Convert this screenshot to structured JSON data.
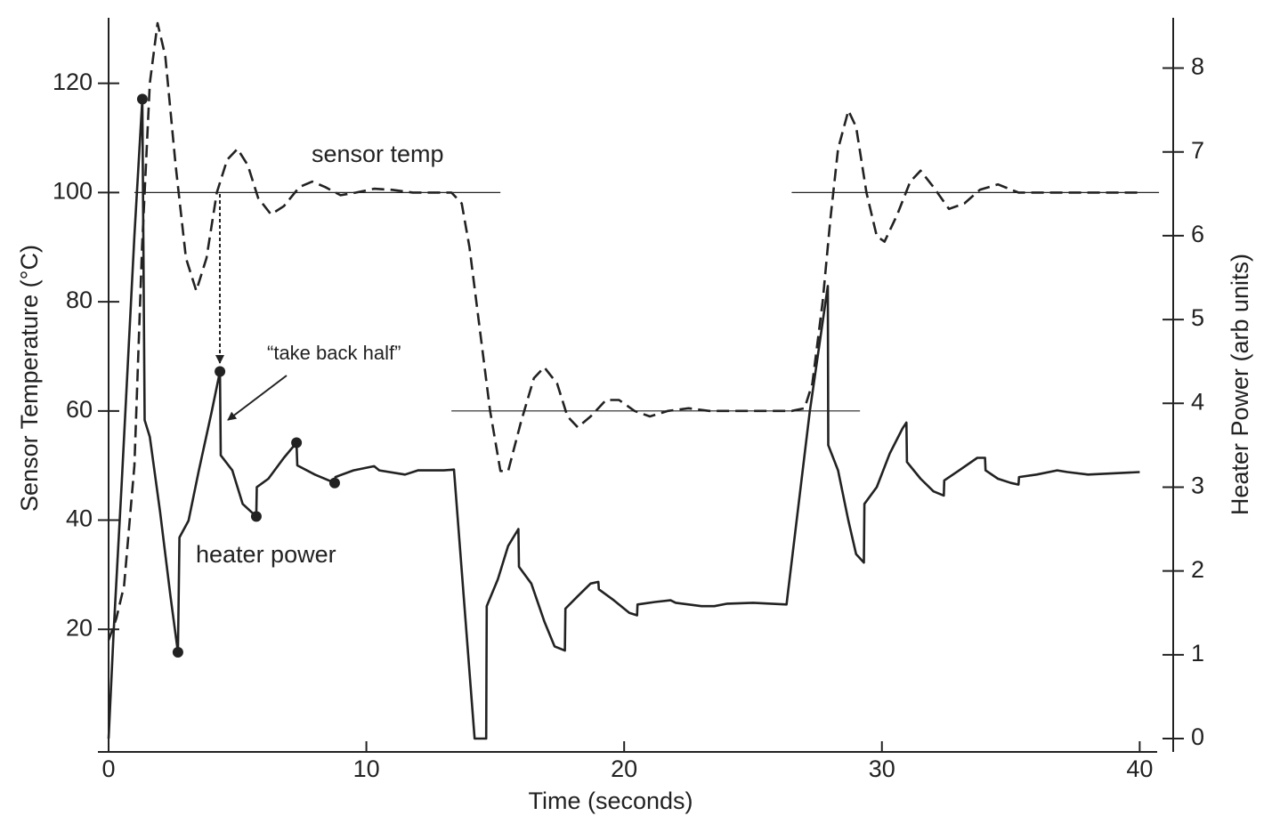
{
  "chart_data": {
    "type": "line",
    "xlabel": "Time (seconds)",
    "ylabel": "Sensor Temperature (°C)",
    "y2label": "Heater Power (arb units)",
    "xlim": [
      0,
      41.3
    ],
    "xticks": [
      0,
      10,
      20,
      30,
      40
    ],
    "ylim": [
      0,
      132
    ],
    "yticks": [
      20,
      40,
      60,
      80,
      100,
      120
    ],
    "y2lim": [
      0,
      8.6
    ],
    "y2ticks": [
      0,
      1,
      2,
      3,
      4,
      5,
      6,
      7,
      8
    ],
    "annotations": [
      "“take back half”"
    ],
    "series": [
      {
        "name": "sensor temp",
        "color": "#222222",
        "dash": true,
        "x": [
          0,
          0.3,
          0.6,
          1.0,
          1.3,
          1.6,
          1.9,
          2.2,
          2.6,
          3.0,
          3.4,
          3.8,
          4.2,
          4.6,
          5.0,
          5.4,
          5.8,
          6.3,
          6.8,
          7.4,
          7.9,
          8.4,
          9.0,
          9.6,
          10.3,
          11,
          11.8,
          12.5,
          13.3,
          13.7,
          14.0,
          14.4,
          14.8,
          15.2,
          15.5,
          16.0,
          16.5,
          16.9,
          17.4,
          17.8,
          18.2,
          18.7,
          19.3,
          19.8,
          20.4,
          21.0,
          21.7,
          22.5,
          23.3,
          24,
          26.5,
          27,
          27.3,
          27.7,
          28.0,
          28.3,
          28.7,
          29.0,
          29.4,
          29.8,
          30.1,
          30.6,
          31.1,
          31.5,
          32.0,
          32.6,
          33.2,
          33.8,
          34.5,
          35.3,
          36,
          40
        ],
        "values": [
          18,
          22,
          28,
          50,
          90,
          120,
          131,
          125,
          105,
          88,
          82,
          88,
          100,
          106,
          108,
          105,
          99,
          96,
          97.5,
          101,
          102,
          101,
          99.5,
          100,
          100.7,
          100.5,
          100,
          100,
          100,
          98,
          90,
          75,
          60,
          49,
          49,
          58,
          66,
          68,
          65,
          59,
          57,
          59,
          62,
          62,
          60,
          59,
          60,
          60.5,
          60,
          60,
          60,
          60.5,
          65,
          80,
          95,
          108,
          115,
          112,
          100,
          92,
          91,
          96,
          102,
          104,
          101,
          97,
          98,
          100.5,
          101.5,
          100,
          100,
          100
        ]
      },
      {
        "name": "heater power",
        "color": "#222222",
        "axis": "y2",
        "x": [
          0,
          0.2,
          0.5,
          1.0,
          1.31,
          1.4,
          1.6,
          2.0,
          2.4,
          2.69,
          2.75,
          3.1,
          3.5,
          4.0,
          4.32,
          4.35,
          4.8,
          5.2,
          5.73,
          5.75,
          6.2,
          6.8,
          7.29,
          7.32,
          8.0,
          8.77,
          8.8,
          9.5,
          10.3,
          10.5,
          11.5,
          12,
          13.0,
          13.4,
          14.2,
          14.65,
          14.67,
          15.1,
          15.5,
          15.9,
          15.92,
          16.4,
          16.9,
          17.3,
          17.7,
          17.72,
          18.2,
          18.7,
          19.0,
          19.02,
          19.6,
          20.2,
          20.5,
          20.52,
          21.2,
          21.8,
          22,
          23,
          23.5,
          24,
          25,
          26.3,
          27.2,
          27.9,
          27.92,
          28.3,
          28.7,
          29.0,
          29.3,
          29.32,
          29.8,
          30.3,
          30.8,
          30.95,
          30.97,
          31.5,
          32.0,
          32.4,
          32.42,
          33,
          33.7,
          34.0,
          34.02,
          34.5,
          35,
          35.3,
          35.32,
          36,
          36.8,
          37.2,
          38,
          40
        ],
        "values": [
          0,
          1.3,
          3,
          6,
          7.63,
          3.8,
          3.6,
          2.7,
          1.7,
          1.03,
          2.4,
          2.6,
          3.2,
          3.9,
          4.38,
          3.38,
          3.2,
          2.8,
          2.65,
          3.0,
          3.1,
          3.35,
          3.53,
          3.26,
          3.15,
          3.05,
          3.12,
          3.2,
          3.25,
          3.2,
          3.15,
          3.2,
          3.2,
          3.21,
          0,
          0,
          1.58,
          1.9,
          2.3,
          2.5,
          2.05,
          1.85,
          1.4,
          1.1,
          1.05,
          1.55,
          1.7,
          1.85,
          1.87,
          1.78,
          1.65,
          1.5,
          1.47,
          1.6,
          1.63,
          1.65,
          1.62,
          1.58,
          1.58,
          1.61,
          1.62,
          1.6,
          3.9,
          5.4,
          3.5,
          3.2,
          2.6,
          2.2,
          2.1,
          2.8,
          3.0,
          3.4,
          3.7,
          3.77,
          3.3,
          3.1,
          2.95,
          2.9,
          3.08,
          3.2,
          3.35,
          3.35,
          3.2,
          3.1,
          3.05,
          3.03,
          3.12,
          3.15,
          3.2,
          3.18,
          3.15,
          3.18
        ]
      },
      {
        "color": "#222222",
        "axis": "y2",
        "marker": "dot",
        "x": [
          1.31,
          2.69,
          4.32,
          5.73,
          7.29,
          8.77
        ],
        "values": [
          7.63,
          1.03,
          4.38,
          2.65,
          3.53,
          3.05
        ]
      }
    ],
    "setpoints": [
      {
        "x": [
          1.0,
          15.2
        ],
        "value": 100
      },
      {
        "x": [
          13.3,
          29.15
        ],
        "value": 60
      },
      {
        "x": [
          26.5,
          40.75
        ],
        "value": 100
      }
    ]
  }
}
